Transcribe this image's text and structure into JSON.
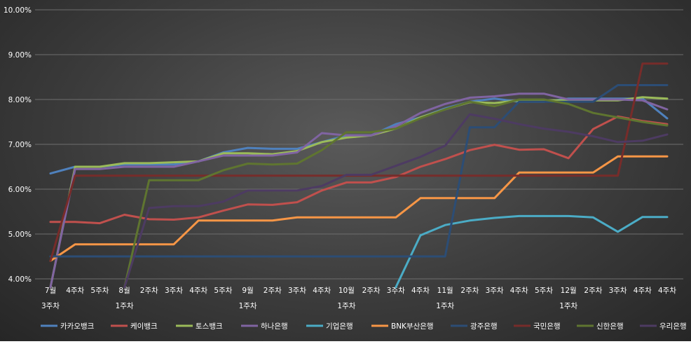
{
  "chart_data": {
    "type": "line",
    "ylim": [
      4.0,
      10.0
    ],
    "yticks": [
      "4.00%",
      "5.00%",
      "6.00%",
      "7.00%",
      "8.00%",
      "9.00%",
      "10.00%"
    ],
    "xlabels_top": [
      "7월",
      "4주차",
      "5주차",
      "8월",
      "2주차",
      "3주차",
      "4주차",
      "5주차",
      "9월",
      "2주차",
      "3주차",
      "4주차",
      "10월",
      "2주차",
      "3주차",
      "4주차",
      "11월",
      "2주차",
      "3주차",
      "4주차",
      "5주차",
      "12월",
      "2주차",
      "3주차",
      "4주차",
      "4주차"
    ],
    "xlabels_bottom": [
      "3주차",
      "",
      "",
      "1주차",
      "",
      "",
      "",
      "",
      "1주차",
      "",
      "",
      "",
      "1주차",
      "",
      "",
      "",
      "1주차",
      "",
      "",
      "",
      "",
      "1주차",
      "",
      "",
      "",
      ""
    ],
    "grid": true,
    "legend_position": "bottom",
    "series": [
      {
        "name": "카카오뱅크",
        "color": "#4f81bd",
        "values": [
          6.35,
          6.5,
          6.5,
          6.55,
          6.55,
          6.55,
          6.62,
          6.82,
          6.92,
          6.9,
          6.9,
          7.05,
          7.2,
          7.2,
          7.45,
          7.6,
          7.8,
          7.95,
          8.02,
          7.95,
          7.95,
          8.02,
          8.02,
          8.02,
          8.02,
          7.58
        ]
      },
      {
        "name": "케이뱅크",
        "color": "#c0504d",
        "values": [
          5.27,
          5.27,
          5.24,
          5.43,
          5.33,
          5.32,
          5.37,
          5.52,
          5.66,
          5.65,
          5.71,
          5.97,
          6.15,
          6.15,
          6.27,
          6.5,
          6.67,
          6.87,
          6.99,
          6.88,
          6.89,
          6.69,
          7.34,
          7.62,
          7.52,
          7.45
        ]
      },
      {
        "name": "토스뱅크",
        "color": "#9bbb59",
        "values": [
          null,
          6.5,
          6.5,
          6.58,
          6.58,
          6.6,
          6.62,
          6.8,
          6.8,
          6.78,
          6.85,
          7.05,
          7.15,
          7.2,
          7.35,
          7.6,
          7.78,
          7.94,
          7.92,
          7.98,
          7.98,
          7.98,
          7.98,
          7.98,
          8.05,
          8.02
        ]
      },
      {
        "name": "하나은행",
        "color": "#8064a2",
        "values": [
          null,
          6.45,
          6.45,
          6.5,
          6.5,
          6.5,
          6.62,
          6.75,
          6.75,
          6.75,
          6.82,
          7.25,
          7.2,
          7.2,
          7.4,
          7.7,
          7.9,
          8.04,
          8.07,
          8.13,
          8.13,
          8.0,
          8.0,
          8.0,
          7.98,
          7.78
        ]
      },
      {
        "name": "기업은행",
        "color": "#4bacc6",
        "values": [
          null,
          null,
          null,
          null,
          null,
          null,
          null,
          null,
          null,
          null,
          null,
          null,
          null,
          null,
          null,
          4.97,
          5.2,
          5.3,
          5.36,
          5.4,
          5.4,
          5.4,
          5.37,
          5.05,
          5.38,
          5.38
        ]
      },
      {
        "name": "BNK부산은행",
        "color": "#f79646",
        "values": [
          4.4,
          4.77,
          4.77,
          4.77,
          4.77,
          4.77,
          5.3,
          5.3,
          5.3,
          5.3,
          5.37,
          5.37,
          5.37,
          5.37,
          5.37,
          5.8,
          5.8,
          5.8,
          5.8,
          6.37,
          6.37,
          6.37,
          6.37,
          6.73,
          6.73,
          6.73
        ]
      },
      {
        "name": "광주은행",
        "color": "#2c4d75",
        "values": [
          4.5,
          4.5,
          4.5,
          4.5,
          4.5,
          4.5,
          4.5,
          4.5,
          4.5,
          4.5,
          4.5,
          4.5,
          4.5,
          4.5,
          4.5,
          4.5,
          4.5,
          7.38,
          7.38,
          7.95,
          7.95,
          7.95,
          7.95,
          8.32,
          8.32,
          8.32
        ]
      },
      {
        "name": "국민은행",
        "color": "#772c2a",
        "values": [
          4.4,
          6.3,
          6.3,
          6.3,
          6.3,
          6.3,
          6.3,
          6.3,
          6.3,
          6.3,
          6.3,
          6.3,
          6.3,
          6.3,
          6.3,
          6.3,
          6.3,
          6.3,
          6.3,
          6.3,
          6.3,
          6.3,
          6.3,
          6.3,
          8.8,
          8.8
        ]
      },
      {
        "name": "신한은행",
        "color": "#5f7530",
        "values": [
          null,
          null,
          null,
          null,
          6.2,
          6.2,
          6.2,
          6.42,
          6.57,
          6.55,
          6.57,
          6.87,
          7.27,
          7.27,
          7.35,
          7.58,
          7.78,
          7.95,
          7.85,
          8.0,
          8.0,
          7.9,
          7.7,
          7.6,
          7.5,
          7.42
        ]
      },
      {
        "name": "우리은행",
        "color": "#4d3b62",
        "values": [
          null,
          null,
          null,
          null,
          5.58,
          5.62,
          5.62,
          5.72,
          5.97,
          5.97,
          5.97,
          6.07,
          6.32,
          6.32,
          6.52,
          6.72,
          6.97,
          7.67,
          7.57,
          7.45,
          7.35,
          7.28,
          7.18,
          7.05,
          7.08,
          7.22
        ]
      }
    ]
  }
}
